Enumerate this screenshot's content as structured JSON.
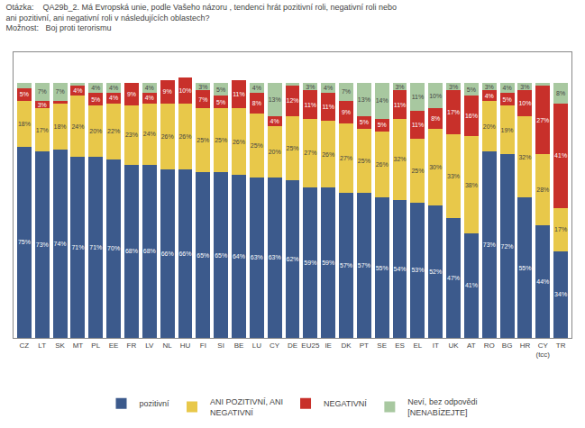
{
  "chart_data": {
    "type": "bar",
    "stacked": true,
    "title": "Otázka:    QA29b_2. Má Evropská unie, podle Vašeho názoru , tendenci hrát pozitivní roli, negativní roli nebo ani pozitivní, ani negativní roli v následujících oblastech?",
    "subtitle": "Možnost:   Boj proti terorismu",
    "categories": [
      "CZ",
      "LT",
      "SK",
      "MT",
      "PL",
      "EE",
      "FR",
      "LV",
      "NL",
      "HU",
      "FI",
      "SI",
      "BE",
      "LU",
      "CY",
      "DE",
      "EU25",
      "IE",
      "DK",
      "PT",
      "SE",
      "ES",
      "EL",
      "IT",
      "UK",
      "AT",
      "RO",
      "BG",
      "HR",
      "CY\n(tcc)",
      "TR"
    ],
    "series": [
      {
        "name": "pozitivní",
        "color": "#3C5A8C",
        "values": [
          75,
          73,
          74,
          71,
          71,
          70,
          68,
          68,
          66,
          66,
          65,
          65,
          64,
          63,
          63,
          62,
          59,
          59,
          57,
          57,
          55,
          54,
          53,
          52,
          47,
          41,
          73,
          72,
          55,
          44,
          34
        ],
        "value_labels": [
          "75%",
          "73%",
          "74%",
          "71%",
          "71%",
          "70%",
          "68%",
          "68%",
          "66%",
          "66%",
          "65%",
          "65%",
          "64%",
          "63%",
          "63%",
          "62%",
          "59%",
          "59%",
          "57%",
          "57%",
          "55%",
          "54%",
          "53%",
          "52%",
          "47%",
          "41%",
          "73%",
          "72%",
          "55%",
          "44%",
          "34%"
        ]
      },
      {
        "name": "ANI POZITIVNÍ, ANI\nNEGATIVNÍ",
        "color": "#E8C84A",
        "values": [
          18,
          17,
          18,
          24,
          20,
          22,
          23,
          24,
          26,
          26,
          25,
          25,
          26,
          25,
          20,
          25,
          27,
          26,
          27,
          25,
          26,
          32,
          25,
          30,
          33,
          38,
          20,
          19,
          32,
          28,
          17
        ],
        "value_labels": [
          "18%",
          "17%",
          "18%",
          "24%",
          "20%",
          "22%",
          "23%",
          "24%",
          "26%",
          "26%",
          "25%",
          "25%",
          "26%",
          "25%",
          "20%",
          "25%",
          "27%",
          "26%",
          "27%",
          "25%",
          "26%",
          "32%",
          "25%",
          "30%",
          "33%",
          "38%",
          "20%",
          "19%",
          "32%",
          "28%",
          "17%"
        ]
      },
      {
        "name": "NEGATIVNÍ",
        "color": "#C8302A",
        "values": [
          5,
          3,
          1,
          4,
          5,
          4,
          9,
          4,
          9,
          10,
          7,
          5,
          11,
          8,
          4,
          12,
          11,
          11,
          9,
          5,
          5,
          11,
          11,
          8,
          17,
          16,
          4,
          5,
          10,
          27,
          41
        ],
        "value_labels": [
          "5%",
          "3%",
          null,
          "4%",
          "5%",
          "4%",
          "9%",
          "4%",
          "9%",
          "10%",
          "7%",
          "5%",
          "11%",
          "8%",
          "4%",
          "12%",
          "11%",
          "11%",
          "9%",
          "5%",
          "5%",
          "11%",
          "11%",
          "8%",
          "17%",
          "16%",
          "4%",
          "5%",
          "10%",
          "27%",
          "41%"
        ]
      },
      {
        "name": "Neví, bez odpovědi\n[NENABÍZEJTE]",
        "color": "#A8C8A0",
        "values": [
          2,
          7,
          7,
          1,
          4,
          4,
          0,
          4,
          0,
          0,
          3,
          5,
          0,
          4,
          13,
          1,
          3,
          4,
          7,
          13,
          14,
          3,
          11,
          10,
          3,
          5,
          3,
          4,
          3,
          1,
          8
        ],
        "value_labels": [
          null,
          "7%",
          "7%",
          null,
          "4%",
          "4%",
          null,
          "4%",
          null,
          null,
          "3%",
          "5%",
          null,
          "4%",
          "13%",
          null,
          "3%",
          "4%",
          "7%",
          "13%",
          "14%",
          "3%",
          "11%",
          "10%",
          "3%",
          "5%",
          "3%",
          "4%",
          "3%",
          null,
          "8%"
        ]
      }
    ],
    "ylim": [
      0,
      112
    ],
    "data_labels": true,
    "tick_labels": "x",
    "grid": false,
    "legend": "bottom"
  }
}
